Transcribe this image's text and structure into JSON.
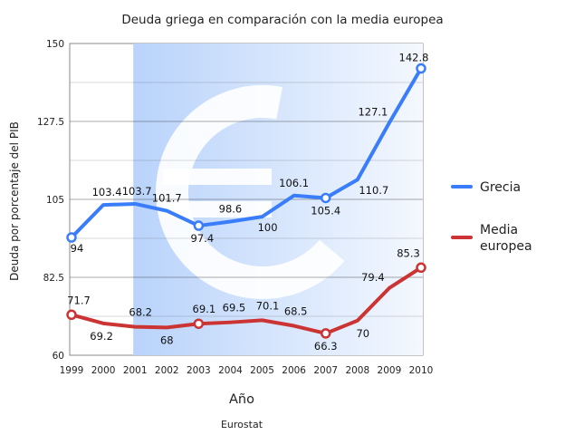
{
  "chart_data": {
    "type": "line",
    "title": "Deuda griega en comparación con la media europea",
    "xlabel": "Año",
    "ylabel": "Deuda por porcentaje del PIB",
    "source": "Eurostat",
    "categories": [
      "1999",
      "2000",
      "2001",
      "2002",
      "2003",
      "2004",
      "2005",
      "2006",
      "2007",
      "2008",
      "2009",
      "2010"
    ],
    "ylim": [
      60,
      150
    ],
    "yticks": [
      "60",
      "82.5",
      "105",
      "127.5",
      "150"
    ],
    "series": [
      {
        "name": "Grecia",
        "color": "#3a7dfa",
        "values": [
          94,
          103.4,
          103.7,
          101.7,
          97.4,
          98.6,
          100,
          106.1,
          105.4,
          110.7,
          127.1,
          142.8
        ],
        "labels": [
          "94",
          "103.4",
          "103.7",
          "101.7",
          "97.4",
          "98.6",
          "100",
          "106.1",
          "105.4",
          "110.7",
          "127.1",
          "142.8"
        ]
      },
      {
        "name": "Media\neuropea",
        "color": "#cc3333",
        "values": [
          71.7,
          69.2,
          68.2,
          68,
          69.1,
          69.5,
          70.1,
          68.5,
          66.3,
          70,
          79.4,
          85.3
        ],
        "labels": [
          "71.7",
          "69.2",
          "68.2",
          "68",
          "69.1",
          "69.5",
          "70.1",
          "68.5",
          "66.3",
          "70",
          "79.4",
          "85.3"
        ]
      }
    ],
    "grid": true,
    "legend": "right"
  }
}
